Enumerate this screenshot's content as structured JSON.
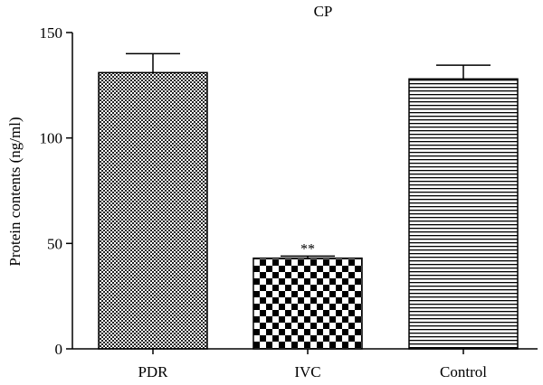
{
  "chart_data": {
    "type": "bar",
    "title": "CP",
    "xlabel": "",
    "ylabel": "Protein contents (ng/ml)",
    "ylim": [
      0,
      150
    ],
    "yticks": [
      0,
      50,
      100,
      150
    ],
    "categories": [
      "PDR",
      "IVC",
      "Control"
    ],
    "values": [
      131,
      43,
      128
    ],
    "errors": [
      9,
      1,
      6.5
    ],
    "annotations": [
      "",
      "**",
      ""
    ],
    "fill_patterns": [
      "fine-crosshatch",
      "checkerboard",
      "horizontal-stripes"
    ],
    "grid": false,
    "legend": "none"
  }
}
